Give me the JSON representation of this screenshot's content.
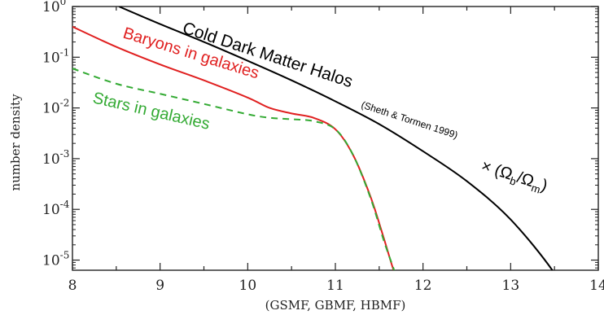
{
  "chart_data": {
    "type": "line",
    "xlabel": "(GSMF, GBMF, HBMF)",
    "ylabel": "number density",
    "xlim": [
      8,
      14
    ],
    "ylim_log10": [
      -5.2,
      0
    ],
    "y_scale": "log",
    "grid": false,
    "x_ticks": [
      "8",
      "9",
      "10",
      "11",
      "12",
      "13",
      "14"
    ],
    "y_ticks": [
      {
        "value": 1,
        "base": "10",
        "exp": "0"
      },
      {
        "value": 0.1,
        "base": "10",
        "exp": "-1"
      },
      {
        "value": 0.01,
        "base": "10",
        "exp": "-2"
      },
      {
        "value": 0.001,
        "base": "10",
        "exp": "-3"
      },
      {
        "value": 0.0001,
        "base": "10",
        "exp": "-4"
      },
      {
        "value": 1e-05,
        "base": "10",
        "exp": "-5"
      }
    ],
    "series": [
      {
        "name": "Cold Dark Matter Halos (Sheth & Tormen 1999) × (Ωb/Ωm)",
        "color": "#000000",
        "dash": "solid",
        "x": [
          8.53,
          9.0,
          9.5,
          10.0,
          10.5,
          11.0,
          11.5,
          12.0,
          12.5,
          13.0,
          13.5,
          13.78
        ],
        "y": [
          1.0,
          0.45,
          0.2,
          0.085,
          0.035,
          0.0135,
          0.0048,
          0.0014,
          0.00036,
          6.3e-05,
          5.5e-06,
          7e-07
        ]
      },
      {
        "name": "Baryons in galaxies",
        "color": "#e02020",
        "dash": "solid",
        "x": [
          8.0,
          8.5,
          9.0,
          9.5,
          10.0,
          10.25,
          10.5,
          10.75,
          11.0,
          11.2,
          11.4,
          11.55,
          11.65,
          11.72
        ],
        "y": [
          0.4,
          0.16,
          0.072,
          0.035,
          0.016,
          0.01,
          0.0078,
          0.0064,
          0.0038,
          0.0012,
          0.00018,
          2.8e-05,
          7.5e-06,
          3.5e-06
        ]
      },
      {
        "name": "Stars in galaxies",
        "color": "#33aa33",
        "dash": "dashed",
        "x": [
          8.0,
          8.5,
          9.0,
          9.5,
          10.0,
          10.25,
          10.5,
          10.75,
          11.0,
          11.2,
          11.4,
          11.55,
          11.65,
          11.7
        ],
        "y": [
          0.06,
          0.03,
          0.019,
          0.012,
          0.0075,
          0.0064,
          0.006,
          0.0055,
          0.0038,
          0.0012,
          0.00017,
          2.5e-05,
          8e-06,
          4.5e-06
        ]
      }
    ],
    "annotations": {
      "cdm": {
        "main": "Cold Dark Matter Halos",
        "citation": "(Sheth & Tormen 1999)",
        "factor_prefix": "× (Ω",
        "b": "b",
        "slash": "/Ω",
        "m": "m",
        "close": ")"
      },
      "baryons": "Baryons in galaxies",
      "stars": "Stars in galaxies"
    }
  }
}
